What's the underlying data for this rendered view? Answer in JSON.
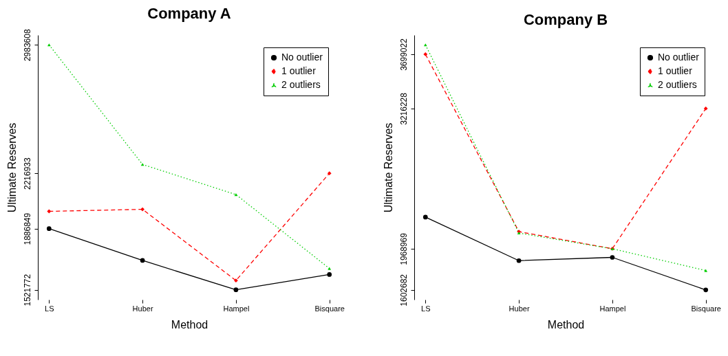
{
  "chart_data": [
    {
      "type": "line",
      "title": "Company A",
      "xlabel": "Method",
      "ylabel": "Ultimate Reserves",
      "categories": [
        "LS",
        "Huber",
        "Hampel",
        "Bisquare"
      ],
      "legend": "top right",
      "grid": false,
      "ylim": [
        1463000,
        3042000
      ],
      "yticks": [
        1521772,
        1886849,
        2216933,
        2983608
      ],
      "series": [
        {
          "name": "No outlier",
          "color": "#000000",
          "marker": "circle",
          "line_style": "solid",
          "values": [
            1886849,
            1697000,
            1521772,
            1613000
          ]
        },
        {
          "name": "1 outlier",
          "color": "#ff0000",
          "marker": "diamond",
          "line_style": "dashed",
          "values": [
            1990000,
            2002000,
            1577000,
            2216933
          ]
        },
        {
          "name": "2 outliers",
          "color": "#00cd00",
          "marker": "triangle",
          "line_style": "dotted",
          "values": [
            2983608,
            2270000,
            2090000,
            1649000
          ]
        }
      ]
    },
    {
      "type": "line",
      "title": "Company B",
      "xlabel": "Method",
      "ylabel": "Ultimate Reserves",
      "categories": [
        "LS",
        "Huber",
        "Hampel",
        "Bisquare"
      ],
      "legend": "top right",
      "grid": false,
      "ylim": [
        1516000,
        3870000
      ],
      "yticks": [
        1602682,
        1968969,
        3216228,
        3699022
      ],
      "series": [
        {
          "name": "No outlier",
          "color": "#000000",
          "marker": "circle",
          "line_style": "solid",
          "values": [
            2250000,
            1863000,
            1892000,
            1602682
          ]
        },
        {
          "name": "1 outlier",
          "color": "#ff0000",
          "marker": "diamond",
          "line_style": "dashed",
          "values": [
            3699022,
            2121000,
            1968969,
            3216228
          ]
        },
        {
          "name": "2 outliers",
          "color": "#00cd00",
          "marker": "triangle",
          "line_style": "dotted",
          "values": [
            3783000,
            2109000,
            1968969,
            1775000
          ]
        }
      ]
    }
  ]
}
